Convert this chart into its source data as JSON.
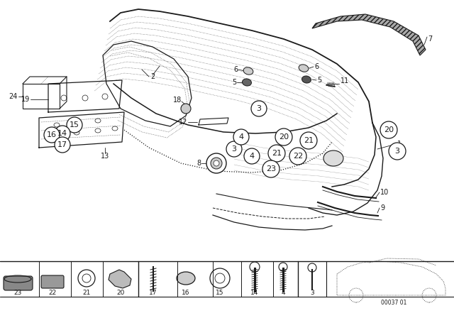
{
  "bg_color": "#ffffff",
  "line_color": "#1a1a1a",
  "figsize": [
    6.4,
    4.48
  ],
  "dpi": 100
}
